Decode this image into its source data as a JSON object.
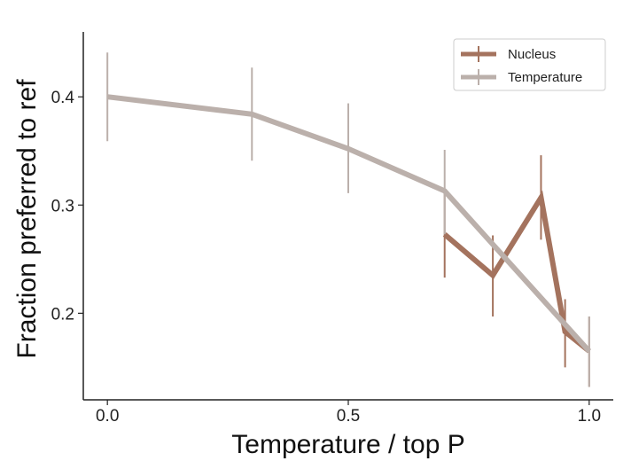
{
  "chart_data": {
    "type": "line",
    "xlabel": "Temperature / top P",
    "ylabel": "Fraction preferred to ref",
    "xlim": [
      -0.05,
      1.05
    ],
    "ylim": [
      0.12,
      0.46
    ],
    "xticks": [
      0.0,
      0.5,
      1.0
    ],
    "xtick_labels": [
      "0.0",
      "0.5",
      "1.0"
    ],
    "yticks": [
      0.2,
      0.3,
      0.4
    ],
    "ytick_labels": [
      "0.2",
      "0.3",
      "0.4"
    ],
    "grid": false,
    "legend_position": "top-right",
    "series": [
      {
        "name": "Nucleus",
        "color": "#a4735e",
        "x": [
          0.7,
          0.8,
          0.9,
          0.95,
          1.0
        ],
        "y": [
          0.273,
          0.235,
          0.307,
          0.183,
          0.165
        ],
        "err_low": [
          0.233,
          0.197,
          0.268,
          0.15,
          0.132
        ],
        "err_high": [
          0.311,
          0.272,
          0.346,
          0.213,
          0.197
        ]
      },
      {
        "name": "Temperature",
        "color": "#bbb0ab",
        "x": [
          0.0,
          0.3,
          0.5,
          0.7,
          1.0
        ],
        "y": [
          0.4,
          0.384,
          0.352,
          0.313,
          0.165
        ],
        "err_low": [
          0.359,
          0.341,
          0.311,
          0.273,
          0.132
        ],
        "err_high": [
          0.441,
          0.427,
          0.394,
          0.351,
          0.197
        ]
      }
    ]
  }
}
